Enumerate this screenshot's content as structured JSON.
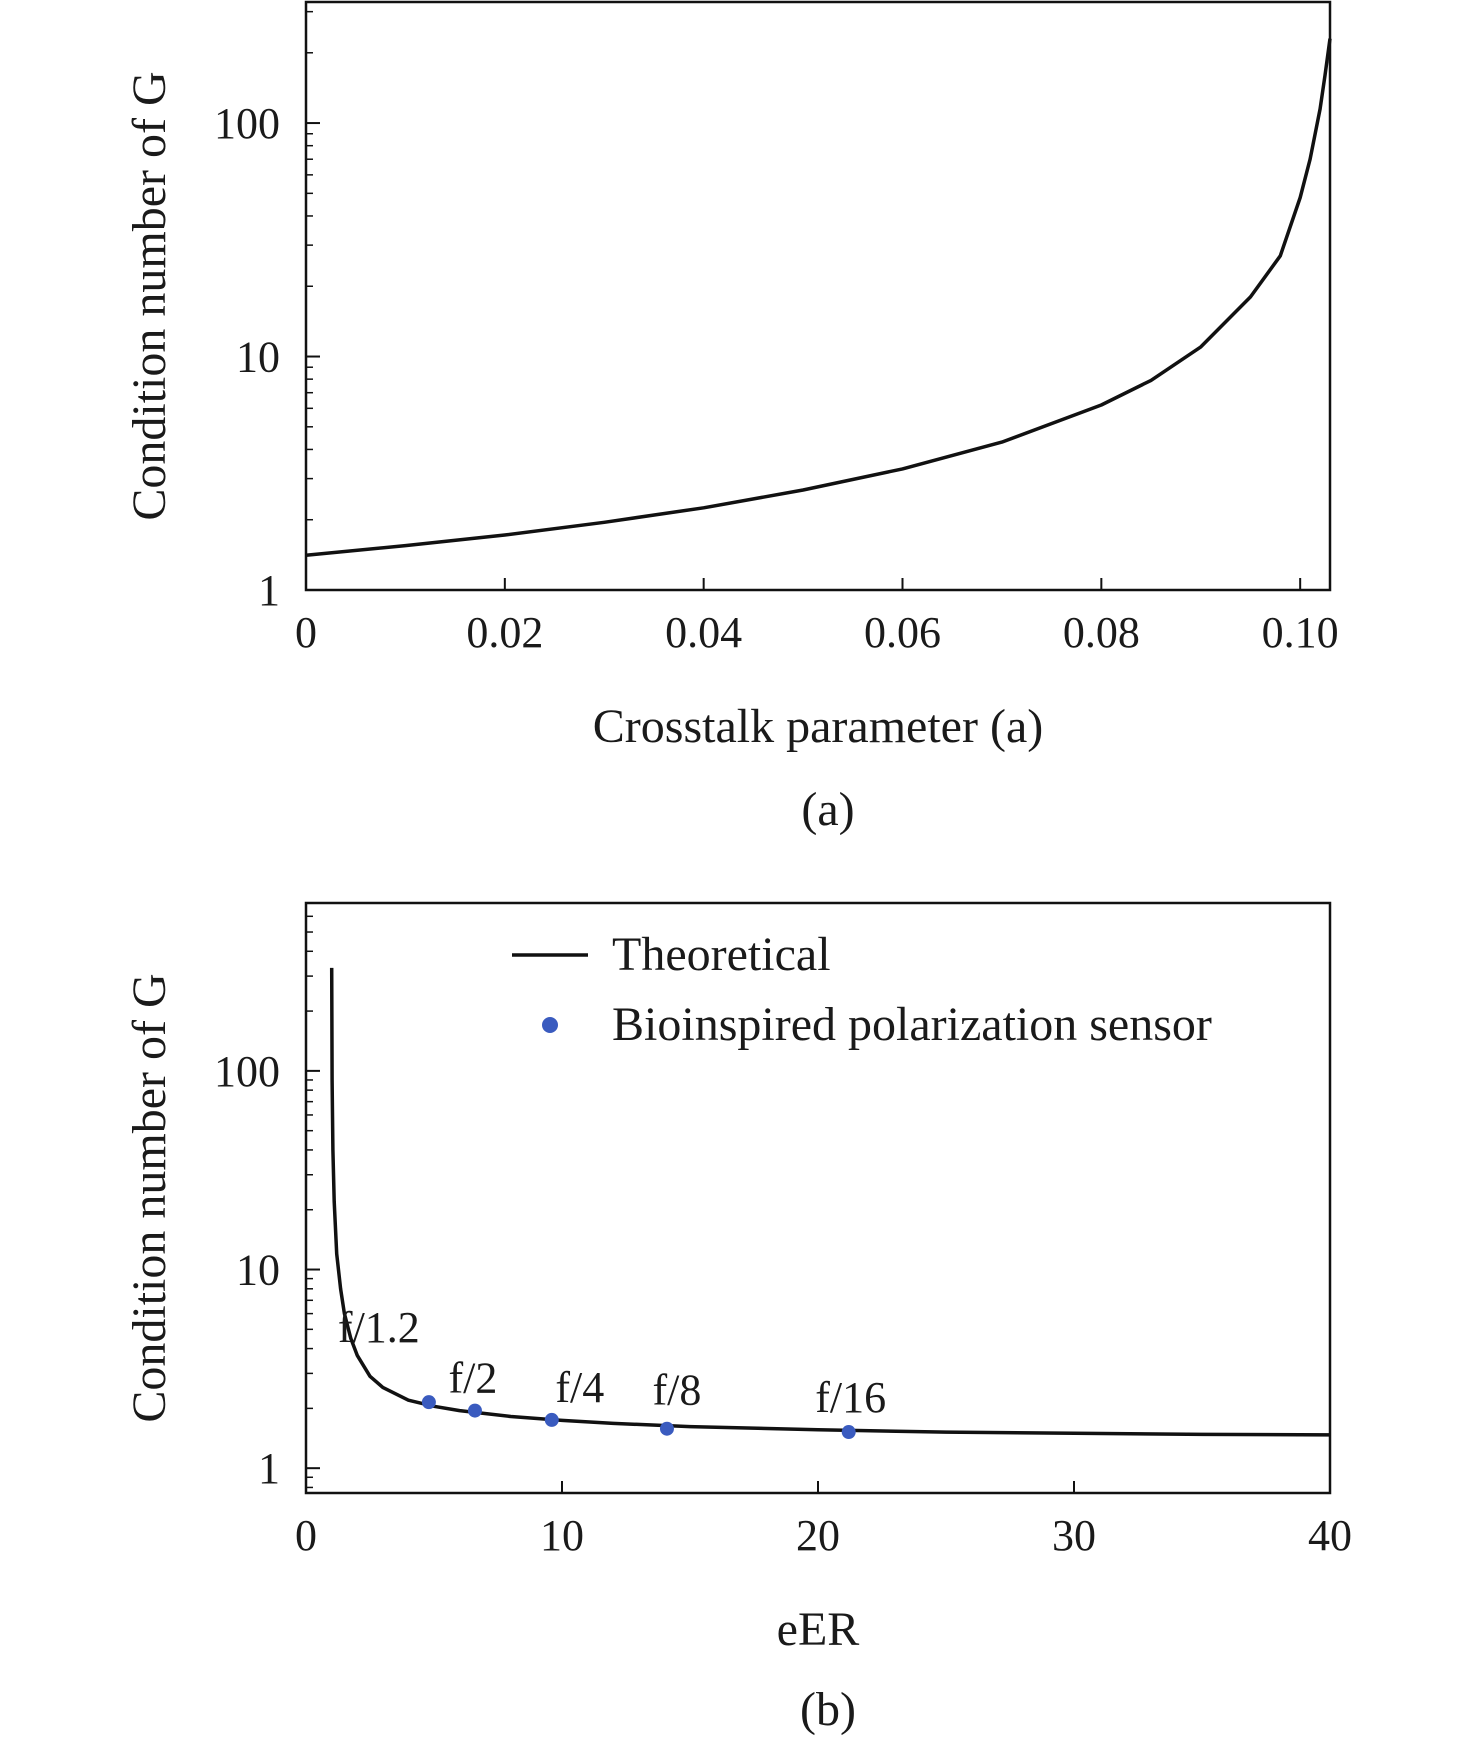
{
  "chart_data": [
    {
      "panel": "(a)",
      "type": "line",
      "xlabel": "Crosstalk parameter (a)",
      "ylabel": "Condition number of G",
      "caption": "(a)",
      "xlim": [
        0,
        0.103
      ],
      "ylim": [
        1,
        330
      ],
      "yscale": "log",
      "x_ticks": [
        "0",
        "0.02",
        "0.04",
        "0.06",
        "0.08",
        "0.10"
      ],
      "x_tick_values": [
        0,
        0.02,
        0.04,
        0.06,
        0.08,
        0.1
      ],
      "y_ticks": [
        "1",
        "10",
        "100"
      ],
      "y_tick_values": [
        1,
        10,
        100
      ],
      "grid": false,
      "series": [
        {
          "color": "#111111",
          "x": [
            0,
            0.01,
            0.02,
            0.03,
            0.04,
            0.05,
            0.06,
            0.07,
            0.08,
            0.085,
            0.09,
            0.095,
            0.098,
            0.1,
            0.101,
            0.102,
            0.1025,
            0.103
          ],
          "y": [
            1.41,
            1.55,
            1.72,
            1.95,
            2.25,
            2.68,
            3.3,
            4.3,
            6.2,
            7.9,
            11.0,
            18.0,
            27.0,
            48.0,
            70.0,
            115.0,
            160.0,
            230.0
          ]
        }
      ]
    },
    {
      "panel": "(b)",
      "type": "line",
      "xlabel": "eER",
      "ylabel": "Condition number of G",
      "caption": "(b)",
      "xlim": [
        0,
        40
      ],
      "ylim": [
        0.75,
        700
      ],
      "yscale": "log",
      "x_ticks": [
        "0",
        "10",
        "20",
        "30",
        "40"
      ],
      "x_tick_values": [
        0,
        10,
        20,
        30,
        40
      ],
      "y_ticks": [
        "1",
        "10",
        "100"
      ],
      "y_tick_values": [
        1,
        10,
        100
      ],
      "grid": false,
      "legend_position": "top-right",
      "series": [
        {
          "name": "Theoretical",
          "style": "line",
          "color": "#111111",
          "x": [
            1.005,
            1.02,
            1.05,
            1.1,
            1.2,
            1.35,
            1.5,
            1.75,
            2,
            2.5,
            3,
            4,
            5,
            6,
            8,
            10,
            12,
            15,
            20,
            25,
            30,
            35,
            40
          ],
          "y": [
            330,
            90,
            40,
            22,
            12,
            8.0,
            6.0,
            4.5,
            3.7,
            2.9,
            2.55,
            2.2,
            2.05,
            1.95,
            1.82,
            1.74,
            1.68,
            1.62,
            1.56,
            1.52,
            1.5,
            1.48,
            1.47
          ]
        },
        {
          "name": "Bioinspired polarization sensor",
          "style": "scatter",
          "color": "#3a5bbf",
          "x": [
            4.8,
            6.6,
            9.6,
            14.1,
            21.2
          ],
          "y": [
            2.15,
            1.95,
            1.75,
            1.58,
            1.52
          ],
          "labels": [
            "f/1.2",
            "f/2",
            "f/4",
            "f/8",
            "f/16"
          ]
        }
      ]
    }
  ]
}
